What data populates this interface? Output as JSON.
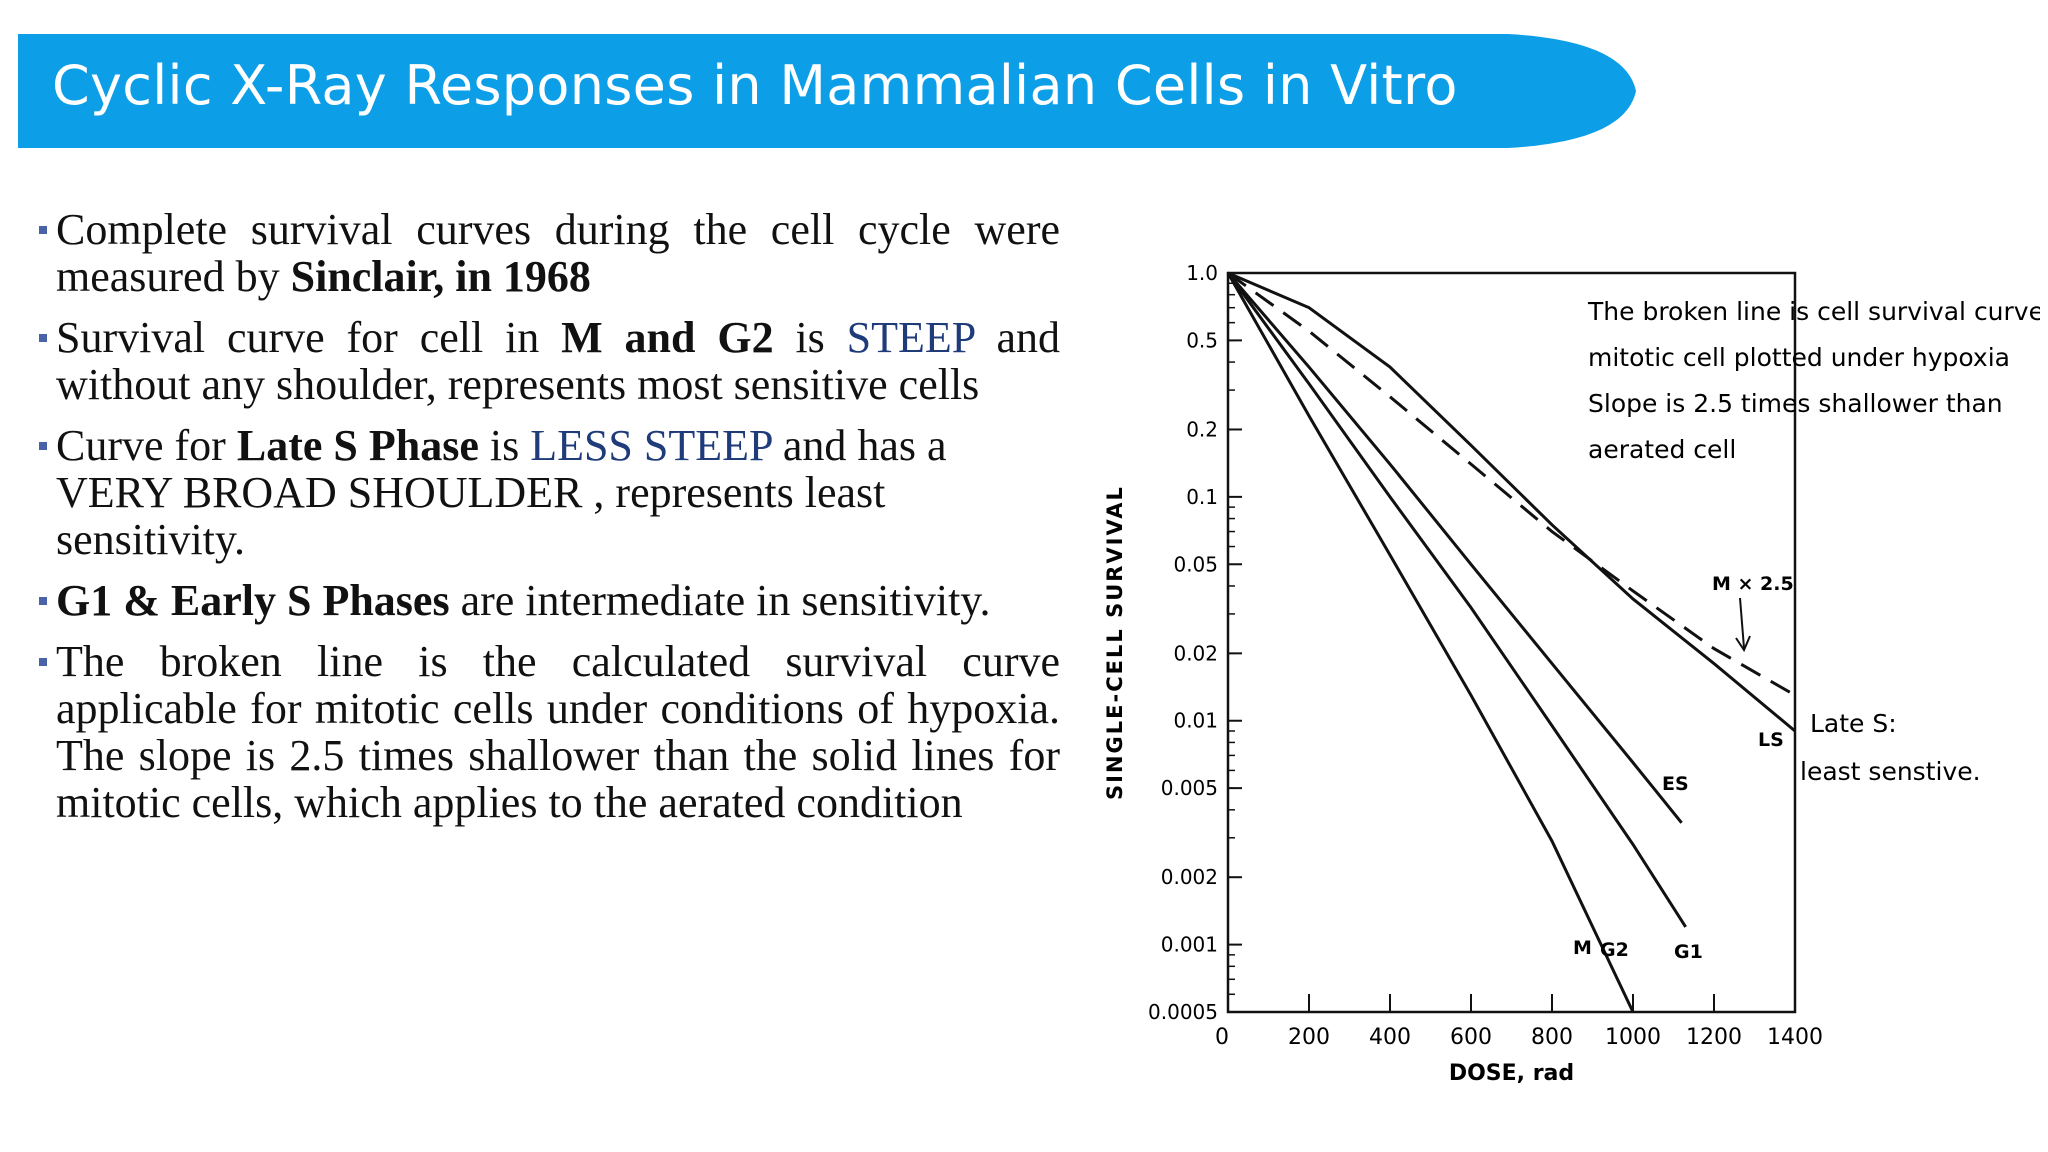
{
  "title": "Cyclic X-Ray Responses in Mammalian Cells in Vitro",
  "colors": {
    "banner": "#0d9ee8",
    "accent_text": "#1f3b7a",
    "bullet_marker": "#4a63a8"
  },
  "bullets": [
    {
      "t1": "Complete survival curves during the cell cycle were measured by ",
      "b1": "Sinclair, in 1968"
    },
    {
      "t1": "Survival curve for cell in ",
      "b1": "M and G2",
      "t2": " is ",
      "h1": "STEEP",
      "t3": " and without any shoulder, represents most sensitive cells"
    },
    {
      "t1": "Curve for ",
      "b1": "Late S Phase",
      "t2": " is ",
      "h1": "LESS STEEP",
      "t3": " and has a VERY BROAD SHOULDER , represents least sensitivity."
    },
    {
      "b1": "G1 & Early S Phases",
      "t1": " are intermediate in sensitivity."
    },
    {
      "t1": "The broken line is the calculated survival curve applicable for mitotic cells under conditions of hypoxia. The slope is 2.5 times shallower than the solid lines for mitotic cells, which applies to the aerated condition"
    }
  ],
  "chart_data": {
    "type": "line",
    "xlabel": "DOSE, rad",
    "ylabel": "SINGLE-CELL SURVIVAL",
    "xlim": [
      0,
      1400
    ],
    "ylim": [
      0.0005,
      1.0
    ],
    "y_scale": "log",
    "x_ticks": [
      "0",
      "200",
      "400",
      "600",
      "800",
      "1000",
      "1200",
      "1400"
    ],
    "x_tick_values": [
      0,
      200,
      400,
      600,
      800,
      1000,
      1200,
      1400
    ],
    "y_ticks": [
      "1.0",
      "0.5",
      "0.2",
      "0.1",
      "0.05",
      "0.02",
      "0.01",
      "0.005",
      "0.002",
      "0.001",
      "0.0005"
    ],
    "y_tick_values": [
      1.0,
      0.5,
      0.2,
      0.1,
      0.05,
      0.02,
      0.01,
      0.005,
      0.002,
      0.001,
      0.0005
    ],
    "series": [
      {
        "name": "M G2",
        "dash": false,
        "points": [
          [
            0,
            1.0
          ],
          [
            200,
            0.23
          ],
          [
            400,
            0.055
          ],
          [
            600,
            0.013
          ],
          [
            800,
            0.0029
          ],
          [
            1000,
            0.0005
          ]
        ]
      },
      {
        "name": "G1",
        "dash": false,
        "points": [
          [
            0,
            1.0
          ],
          [
            200,
            0.32
          ],
          [
            400,
            0.1
          ],
          [
            600,
            0.032
          ],
          [
            800,
            0.0095
          ],
          [
            1000,
            0.0028
          ],
          [
            1130,
            0.0012
          ]
        ]
      },
      {
        "name": "ES",
        "dash": false,
        "points": [
          [
            0,
            1.0
          ],
          [
            200,
            0.38
          ],
          [
            400,
            0.14
          ],
          [
            600,
            0.05
          ],
          [
            800,
            0.018
          ],
          [
            1000,
            0.0065
          ],
          [
            1120,
            0.0035
          ]
        ]
      },
      {
        "name": "LS",
        "dash": false,
        "points": [
          [
            0,
            1.0
          ],
          [
            200,
            0.7
          ],
          [
            400,
            0.38
          ],
          [
            600,
            0.17
          ],
          [
            800,
            0.075
          ],
          [
            1000,
            0.035
          ],
          [
            1200,
            0.018
          ],
          [
            1400,
            0.009
          ]
        ]
      },
      {
        "name": "M×2.5",
        "dash": true,
        "points": [
          [
            0,
            1.0
          ],
          [
            200,
            0.55
          ],
          [
            400,
            0.28
          ],
          [
            600,
            0.14
          ],
          [
            800,
            0.07
          ],
          [
            1000,
            0.038
          ],
          [
            1200,
            0.021
          ],
          [
            1400,
            0.013
          ]
        ]
      }
    ],
    "annotations": {
      "hypoxia_note": [
        "The broken line is cell survival curve for",
        "mitotic cell plotted under hypoxia",
        "Slope is 2.5 times shallower than",
        "aerated cell"
      ],
      "late_s_note": [
        "Late S:",
        "least senstive."
      ],
      "labels": {
        "m": "M",
        "g2": "G2",
        "g1": "G1",
        "es": "ES",
        "ls": "LS",
        "mx": "M × 2.5"
      }
    }
  }
}
